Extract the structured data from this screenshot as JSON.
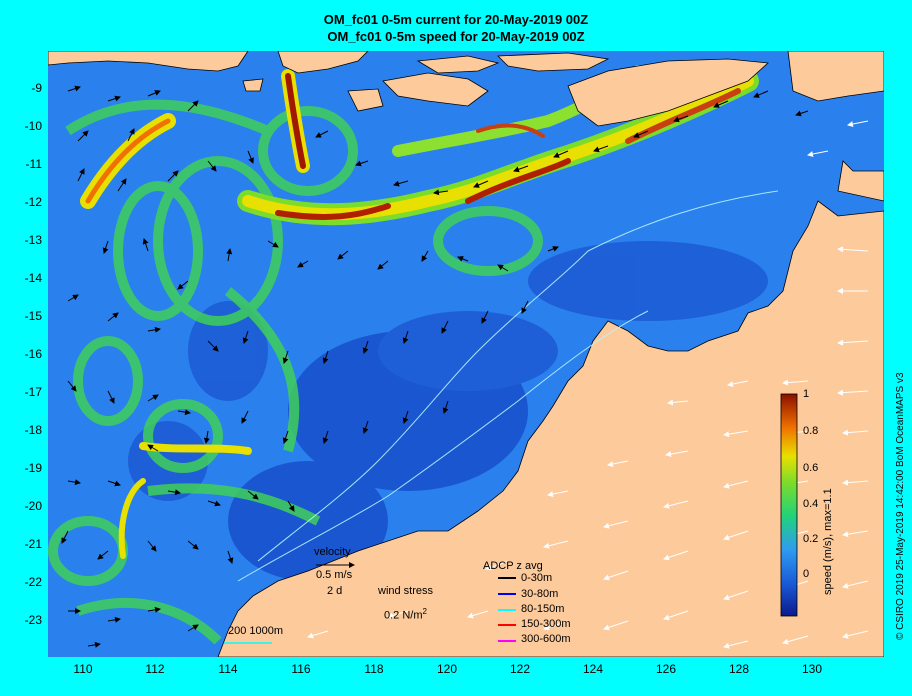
{
  "title_line1": "OM_fc01 0-5m current for 20-May-2019 00Z",
  "title_line2": "OM_fc01 0-5m speed for 20-May-2019 00Z",
  "y_ticks": [
    "-9",
    "-10",
    "-11",
    "-12",
    "-13",
    "-14",
    "-15",
    "-16",
    "-17",
    "-18",
    "-19",
    "-20",
    "-21",
    "-22",
    "-23"
  ],
  "x_ticks": [
    "110",
    "112",
    "114",
    "116",
    "118",
    "120",
    "122",
    "124",
    "126",
    "128",
    "130"
  ],
  "credit": "© CSIRO 2019  25-May-2019 14:42:00 BoM OceanMAPS v3",
  "legend": {
    "velocity_label": "velocity",
    "velocity_scale": "0.5 m/s",
    "velocity_time": "2 d",
    "wind_label": "wind stress",
    "wind_scale": "0.2 N/m",
    "wind_exp": "2",
    "adcp_title": "ADCP z avg",
    "adcp_items": [
      {
        "label": "0-30m",
        "color": "#000000"
      },
      {
        "label": "30-80m",
        "color": "#0000ff"
      },
      {
        "label": "80-150m",
        "color": "#00ffff"
      },
      {
        "label": "150-300m",
        "color": "#ff0000"
      },
      {
        "label": "300-600m",
        "color": "#ff00ff"
      }
    ],
    "scale_bar": "200  1000m"
  },
  "colorbar": {
    "ticks": [
      "1",
      "0.8",
      "0.6",
      "0.4",
      "0.2",
      "0"
    ],
    "label": "speed (m/s), max=1.1"
  },
  "colors": {
    "land": "#fdca9c",
    "ocean_deep": "#1a5cd8",
    "ocean_mid": "#2e8cf0",
    "current_green": "#4fd13a",
    "current_yellow": "#e8e000",
    "current_red": "#c8400a",
    "frame_bg": "#00ffff"
  }
}
